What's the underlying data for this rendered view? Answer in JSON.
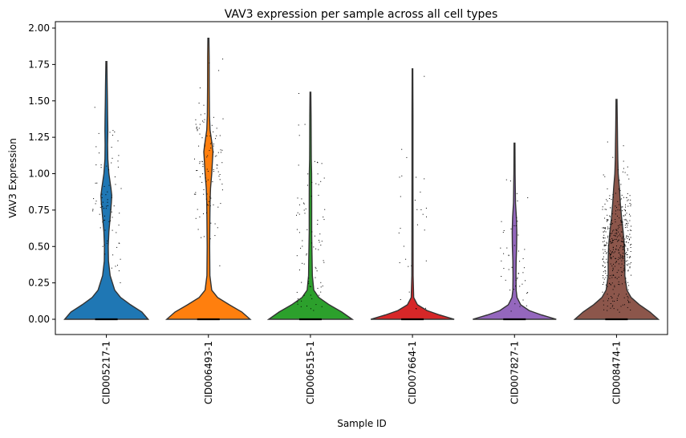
{
  "chart_data": {
    "type": "violin",
    "title": "VAV3 expression per sample across all cell types",
    "xlabel": "Sample ID",
    "ylabel": "VAV3 Expression",
    "ylim": [
      -0.1,
      2.06
    ],
    "yticks": [
      "0.00",
      "0.25",
      "0.50",
      "0.75",
      "1.00",
      "1.25",
      "1.50",
      "1.75",
      "2.00"
    ],
    "grid": false,
    "categories": [
      "CID005217-1",
      "CID006493-1",
      "CID006515-1",
      "CID007664-1",
      "CID007827-1",
      "CID008474-1"
    ],
    "colors": [
      "#1f77b4",
      "#ff7f0e",
      "#2ca02c",
      "#d62728",
      "#9467bd",
      "#8c564b"
    ],
    "series": [
      {
        "max": 1.77,
        "profile": [
          [
            0.0,
            1.0
          ],
          [
            0.05,
            0.85
          ],
          [
            0.1,
            0.58
          ],
          [
            0.15,
            0.34
          ],
          [
            0.2,
            0.2
          ],
          [
            0.3,
            0.09
          ],
          [
            0.4,
            0.05
          ],
          [
            0.5,
            0.045
          ],
          [
            0.6,
            0.06
          ],
          [
            0.7,
            0.09
          ],
          [
            0.8,
            0.12
          ],
          [
            0.85,
            0.13
          ],
          [
            0.9,
            0.11
          ],
          [
            1.0,
            0.06
          ],
          [
            1.1,
            0.035
          ],
          [
            1.2,
            0.03
          ],
          [
            1.3,
            0.035
          ],
          [
            1.4,
            0.03
          ],
          [
            1.5,
            0.025
          ],
          [
            1.6,
            0.02
          ],
          [
            1.77,
            0.012
          ]
        ],
        "pts_n": 80,
        "pts_mean": 0.85,
        "pts_sd": 0.3
      },
      {
        "max": 1.93,
        "profile": [
          [
            0.0,
            1.0
          ],
          [
            0.05,
            0.8
          ],
          [
            0.1,
            0.5
          ],
          [
            0.15,
            0.22
          ],
          [
            0.2,
            0.08
          ],
          [
            0.3,
            0.035
          ],
          [
            0.5,
            0.03
          ],
          [
            0.7,
            0.035
          ],
          [
            0.8,
            0.04
          ],
          [
            0.9,
            0.05
          ],
          [
            1.0,
            0.08
          ],
          [
            1.1,
            0.1
          ],
          [
            1.15,
            0.11
          ],
          [
            1.2,
            0.09
          ],
          [
            1.3,
            0.04
          ],
          [
            1.4,
            0.025
          ],
          [
            1.6,
            0.02
          ],
          [
            1.8,
            0.018
          ],
          [
            1.93,
            0.012
          ]
        ],
        "pts_n": 110,
        "pts_mean": 1.05,
        "pts_sd": 0.28
      },
      {
        "max": 1.56,
        "profile": [
          [
            0.0,
            1.0
          ],
          [
            0.05,
            0.75
          ],
          [
            0.1,
            0.45
          ],
          [
            0.15,
            0.2
          ],
          [
            0.2,
            0.08
          ],
          [
            0.3,
            0.045
          ],
          [
            0.4,
            0.04
          ],
          [
            0.5,
            0.035
          ],
          [
            0.6,
            0.03
          ],
          [
            0.8,
            0.03
          ],
          [
            1.0,
            0.028
          ],
          [
            1.1,
            0.02
          ],
          [
            1.2,
            0.018
          ],
          [
            1.4,
            0.015
          ],
          [
            1.56,
            0.01
          ]
        ],
        "pts_n": 90,
        "pts_mean": 0.55,
        "pts_sd": 0.35
      },
      {
        "max": 1.72,
        "profile": [
          [
            0.0,
            1.0
          ],
          [
            0.03,
            0.65
          ],
          [
            0.06,
            0.35
          ],
          [
            0.1,
            0.12
          ],
          [
            0.15,
            0.03
          ],
          [
            0.3,
            0.015
          ],
          [
            0.6,
            0.014
          ],
          [
            1.0,
            0.012
          ],
          [
            1.4,
            0.011
          ],
          [
            1.72,
            0.008
          ]
        ],
        "pts_n": 30,
        "pts_mean": 0.7,
        "pts_sd": 0.35
      },
      {
        "max": 1.21,
        "profile": [
          [
            0.0,
            1.0
          ],
          [
            0.03,
            0.65
          ],
          [
            0.06,
            0.35
          ],
          [
            0.1,
            0.15
          ],
          [
            0.15,
            0.06
          ],
          [
            0.2,
            0.04
          ],
          [
            0.3,
            0.035
          ],
          [
            0.4,
            0.04
          ],
          [
            0.5,
            0.05
          ],
          [
            0.6,
            0.055
          ],
          [
            0.7,
            0.045
          ],
          [
            0.8,
            0.025
          ],
          [
            1.0,
            0.015
          ],
          [
            1.21,
            0.01
          ]
        ],
        "pts_n": 50,
        "pts_mean": 0.45,
        "pts_sd": 0.25
      },
      {
        "max": 1.51,
        "profile": [
          [
            0.0,
            1.0
          ],
          [
            0.05,
            0.8
          ],
          [
            0.1,
            0.55
          ],
          [
            0.15,
            0.35
          ],
          [
            0.2,
            0.25
          ],
          [
            0.3,
            0.2
          ],
          [
            0.4,
            0.2
          ],
          [
            0.5,
            0.19
          ],
          [
            0.6,
            0.16
          ],
          [
            0.7,
            0.12
          ],
          [
            0.8,
            0.09
          ],
          [
            0.9,
            0.07
          ],
          [
            1.0,
            0.04
          ],
          [
            1.1,
            0.03
          ],
          [
            1.2,
            0.025
          ],
          [
            1.3,
            0.02
          ],
          [
            1.51,
            0.012
          ]
        ],
        "pts_n": 420,
        "pts_mean": 0.5,
        "pts_sd": 0.22
      }
    ]
  }
}
